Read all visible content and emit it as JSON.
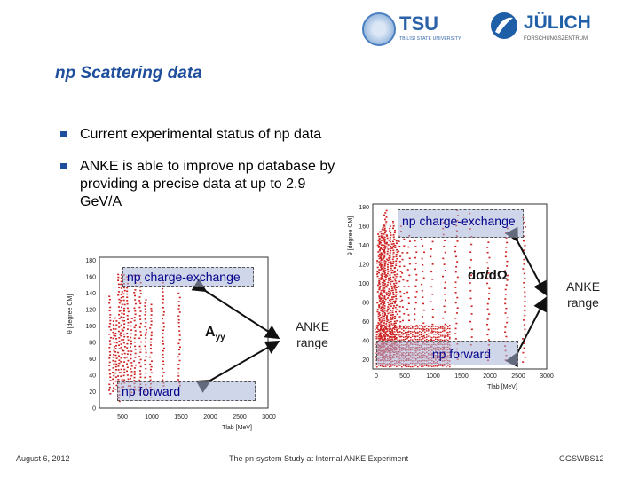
{
  "header": {
    "logo_tsu_name": "TSU",
    "logo_tsu_sub": "TBILISI STATE UNIVERSITY",
    "logo_julich_name": "JÜLICH",
    "logo_julich_sub": "FORSCHUNGSZENTRUM"
  },
  "slide": {
    "title": "np Scattering data",
    "bullets": [
      "Current experimental status of np data",
      "ANKE is able to improve np database by providing a precise data at up to 2.9 GeV/A"
    ]
  },
  "plot_left": {
    "ylabel": "θ [degree CM]",
    "xlabel": "Tlab [MeV]",
    "yticks": [
      "180",
      "160",
      "140",
      "120",
      "100",
      "80",
      "60",
      "40",
      "20",
      "0"
    ],
    "xticks": [
      "500",
      "1000",
      "1500",
      "2000",
      "2500",
      "3000"
    ],
    "label_top": "np charge-exchange",
    "label_bottom": "np forward",
    "observable": "Ayy"
  },
  "plot_right": {
    "ylabel": "θ [degree CM]",
    "xlabel": "Tlab [MeV]",
    "yticks": [
      "180",
      "160",
      "140",
      "120",
      "100",
      "80",
      "60",
      "40",
      "20"
    ],
    "xticks": [
      "0",
      "500",
      "1000",
      "1500",
      "2000",
      "2500",
      "3000"
    ],
    "label_top": "np charge-exchange",
    "label_bottom": "np forward",
    "observable": "dσ/dΩ"
  },
  "annotations": {
    "anke_range_left": "ANKE range",
    "anke_range_right": "ANKE range"
  },
  "footer": {
    "date": "August 6, 2012",
    "center": "The pn-system Study at Internal ANKE Experiment",
    "right": "GGSWBS12"
  },
  "colors": {
    "title": "#1f4e9c",
    "data_points": "#cc2222",
    "label_text": "#00008b"
  }
}
